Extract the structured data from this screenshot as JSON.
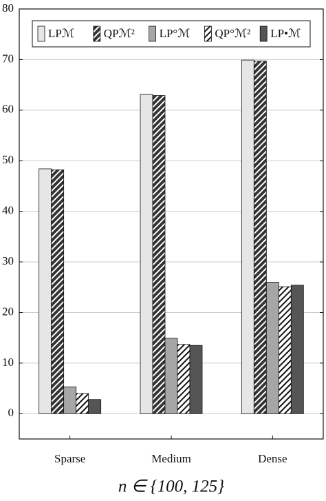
{
  "chart_data": {
    "type": "bar",
    "xlabel": "n ∈ {100, 125}",
    "categories": [
      "Sparse",
      "Medium",
      "Dense"
    ],
    "series": [
      {
        "name": "LPℳ",
        "color": "#e6e6e6",
        "hatch": false,
        "values": [
          48.4,
          63.1,
          69.9
        ]
      },
      {
        "name": "QPℳ²",
        "color": "#333333",
        "hatch": true,
        "hatch_color": "#ffffff",
        "values": [
          48.2,
          62.9,
          69.7
        ]
      },
      {
        "name": "LP°ℳ",
        "color": "#a6a6a6",
        "hatch": false,
        "values": [
          5.3,
          14.9,
          26.0
        ]
      },
      {
        "name": "QP°ℳ²",
        "color": "#ffffff",
        "hatch": true,
        "hatch_color": "#111111",
        "values": [
          4.0,
          13.7,
          25.1
        ]
      },
      {
        "name": "LP•ℳ",
        "color": "#555555",
        "hatch": false,
        "values": [
          2.8,
          13.5,
          25.4
        ]
      }
    ],
    "ylim": [
      -5,
      80
    ],
    "yticks": [
      0,
      10,
      20,
      30,
      40,
      50,
      60,
      70,
      80
    ],
    "grid": true,
    "legend": "top"
  }
}
